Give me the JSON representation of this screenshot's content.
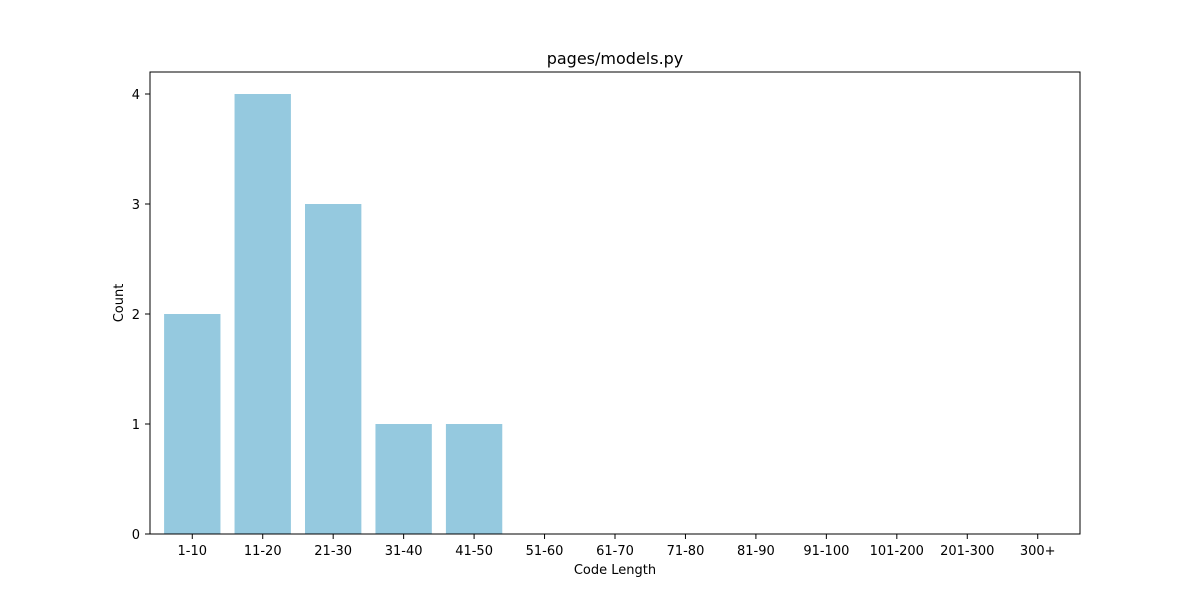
{
  "chart_data": {
    "type": "bar",
    "title": "pages/models.py",
    "xlabel": "Code Length",
    "ylabel": "Count",
    "categories": [
      "1-10",
      "11-20",
      "21-30",
      "31-40",
      "41-50",
      "51-60",
      "61-70",
      "71-80",
      "81-90",
      "91-100",
      "101-200",
      "201-300",
      "300+"
    ],
    "values": [
      2,
      4,
      3,
      1,
      1,
      0,
      0,
      0,
      0,
      0,
      0,
      0,
      0
    ],
    "yticks": [
      "0",
      "1",
      "2",
      "3",
      "4"
    ],
    "ylim": [
      0,
      4.2
    ],
    "grid": false,
    "bar_color": "#95C9DF",
    "axis_color": "#000000"
  }
}
